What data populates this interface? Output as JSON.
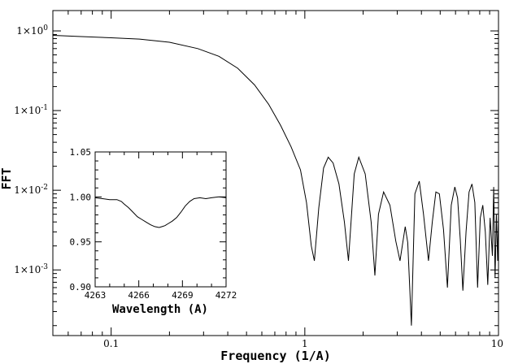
{
  "chart_data": [
    {
      "type": "line",
      "title": "",
      "xlabel": "Frequency (1/A)",
      "ylabel": "FFT",
      "xscale": "log",
      "yscale": "log",
      "xlim": [
        0.05,
        10
      ],
      "ylim": [
        0.00015,
        1.8
      ],
      "x_tick_labels": [
        "0.1",
        "1",
        "10"
      ],
      "x_tick_values": [
        0.1,
        1,
        10
      ],
      "y_tick_labels": [
        {
          "base": "1×10",
          "exp": "0",
          "value": 1
        },
        {
          "base": "1×10",
          "exp": "-1",
          "value": 0.1
        },
        {
          "base": "1×10",
          "exp": "-2",
          "value": 0.01
        },
        {
          "base": "1×10",
          "exp": "-3",
          "value": 0.001
        }
      ],
      "grid": false,
      "legend": false,
      "series": [
        {
          "x": [
            0.05,
            0.07,
            0.1,
            0.14,
            0.2,
            0.28,
            0.36,
            0.45,
            0.55,
            0.65,
            0.75,
            0.85,
            0.95,
            1.02,
            1.08,
            1.12,
            1.18,
            1.25,
            1.32,
            1.4,
            1.5,
            1.6,
            1.68,
            1.8,
            1.9,
            2.05,
            2.2,
            2.3,
            2.4,
            2.55,
            2.75,
            2.95,
            3.1,
            3.3,
            3.4,
            3.55,
            3.7,
            3.9,
            4.1,
            4.35,
            4.55,
            4.75,
            4.95,
            5.2,
            5.45,
            5.7,
            5.95,
            6.15,
            6.35,
            6.55,
            6.8,
            7.05,
            7.3,
            7.55,
            7.8,
            8.05,
            8.3,
            8.55,
            8.8,
            9.05,
            9.3,
            9.45,
            9.6,
            9.75,
            9.9,
            10
          ],
          "y": [
            0.88,
            0.85,
            0.82,
            0.79,
            0.72,
            0.6,
            0.48,
            0.34,
            0.21,
            0.12,
            0.065,
            0.035,
            0.018,
            0.007,
            0.002,
            0.0013,
            0.006,
            0.019,
            0.026,
            0.022,
            0.012,
            0.004,
            0.0013,
            0.016,
            0.026,
            0.016,
            0.004,
            0.00085,
            0.005,
            0.0095,
            0.0065,
            0.0023,
            0.0013,
            0.0035,
            0.0022,
            0.0002,
            0.009,
            0.013,
            0.005,
            0.0013,
            0.004,
            0.0095,
            0.009,
            0.0032,
            0.0006,
            0.0065,
            0.011,
            0.008,
            0.0024,
            0.00055,
            0.003,
            0.0095,
            0.012,
            0.007,
            0.0006,
            0.0045,
            0.0065,
            0.003,
            0.00065,
            0.0045,
            0.0015,
            0.011,
            0.0008,
            0.005,
            0.0013,
            0.0055
          ]
        }
      ]
    },
    {
      "type": "line",
      "title": "",
      "xlabel": "Wavelength (A)",
      "ylabel": "",
      "xlim": [
        4263,
        4272
      ],
      "ylim": [
        0.9,
        1.05
      ],
      "x_tick_labels": [
        "4263",
        "4266",
        "4269",
        "4272"
      ],
      "x_tick_values": [
        4263,
        4266,
        4269,
        4272
      ],
      "y_tick_labels": [
        "1.05",
        "1.00",
        "0.95",
        "0.90"
      ],
      "y_tick_values": [
        1.05,
        1.0,
        0.95,
        0.9
      ],
      "grid": false,
      "legend": false,
      "series": [
        {
          "x": [
            4263.0,
            4263.5,
            4264.0,
            4264.5,
            4264.8,
            4265.0,
            4265.3,
            4265.6,
            4265.9,
            4266.2,
            4266.5,
            4266.8,
            4267.1,
            4267.4,
            4267.6,
            4267.8,
            4268.0,
            4268.3,
            4268.6,
            4268.9,
            4269.2,
            4269.5,
            4269.8,
            4270.2,
            4270.6,
            4271.0,
            4271.5,
            4272.0
          ],
          "y": [
            0.999,
            0.998,
            0.997,
            0.997,
            0.995,
            0.992,
            0.988,
            0.983,
            0.978,
            0.975,
            0.972,
            0.969,
            0.967,
            0.966,
            0.967,
            0.968,
            0.97,
            0.973,
            0.977,
            0.983,
            0.99,
            0.995,
            0.998,
            0.999,
            0.998,
            0.999,
            1.0,
            0.999
          ]
        }
      ]
    }
  ]
}
